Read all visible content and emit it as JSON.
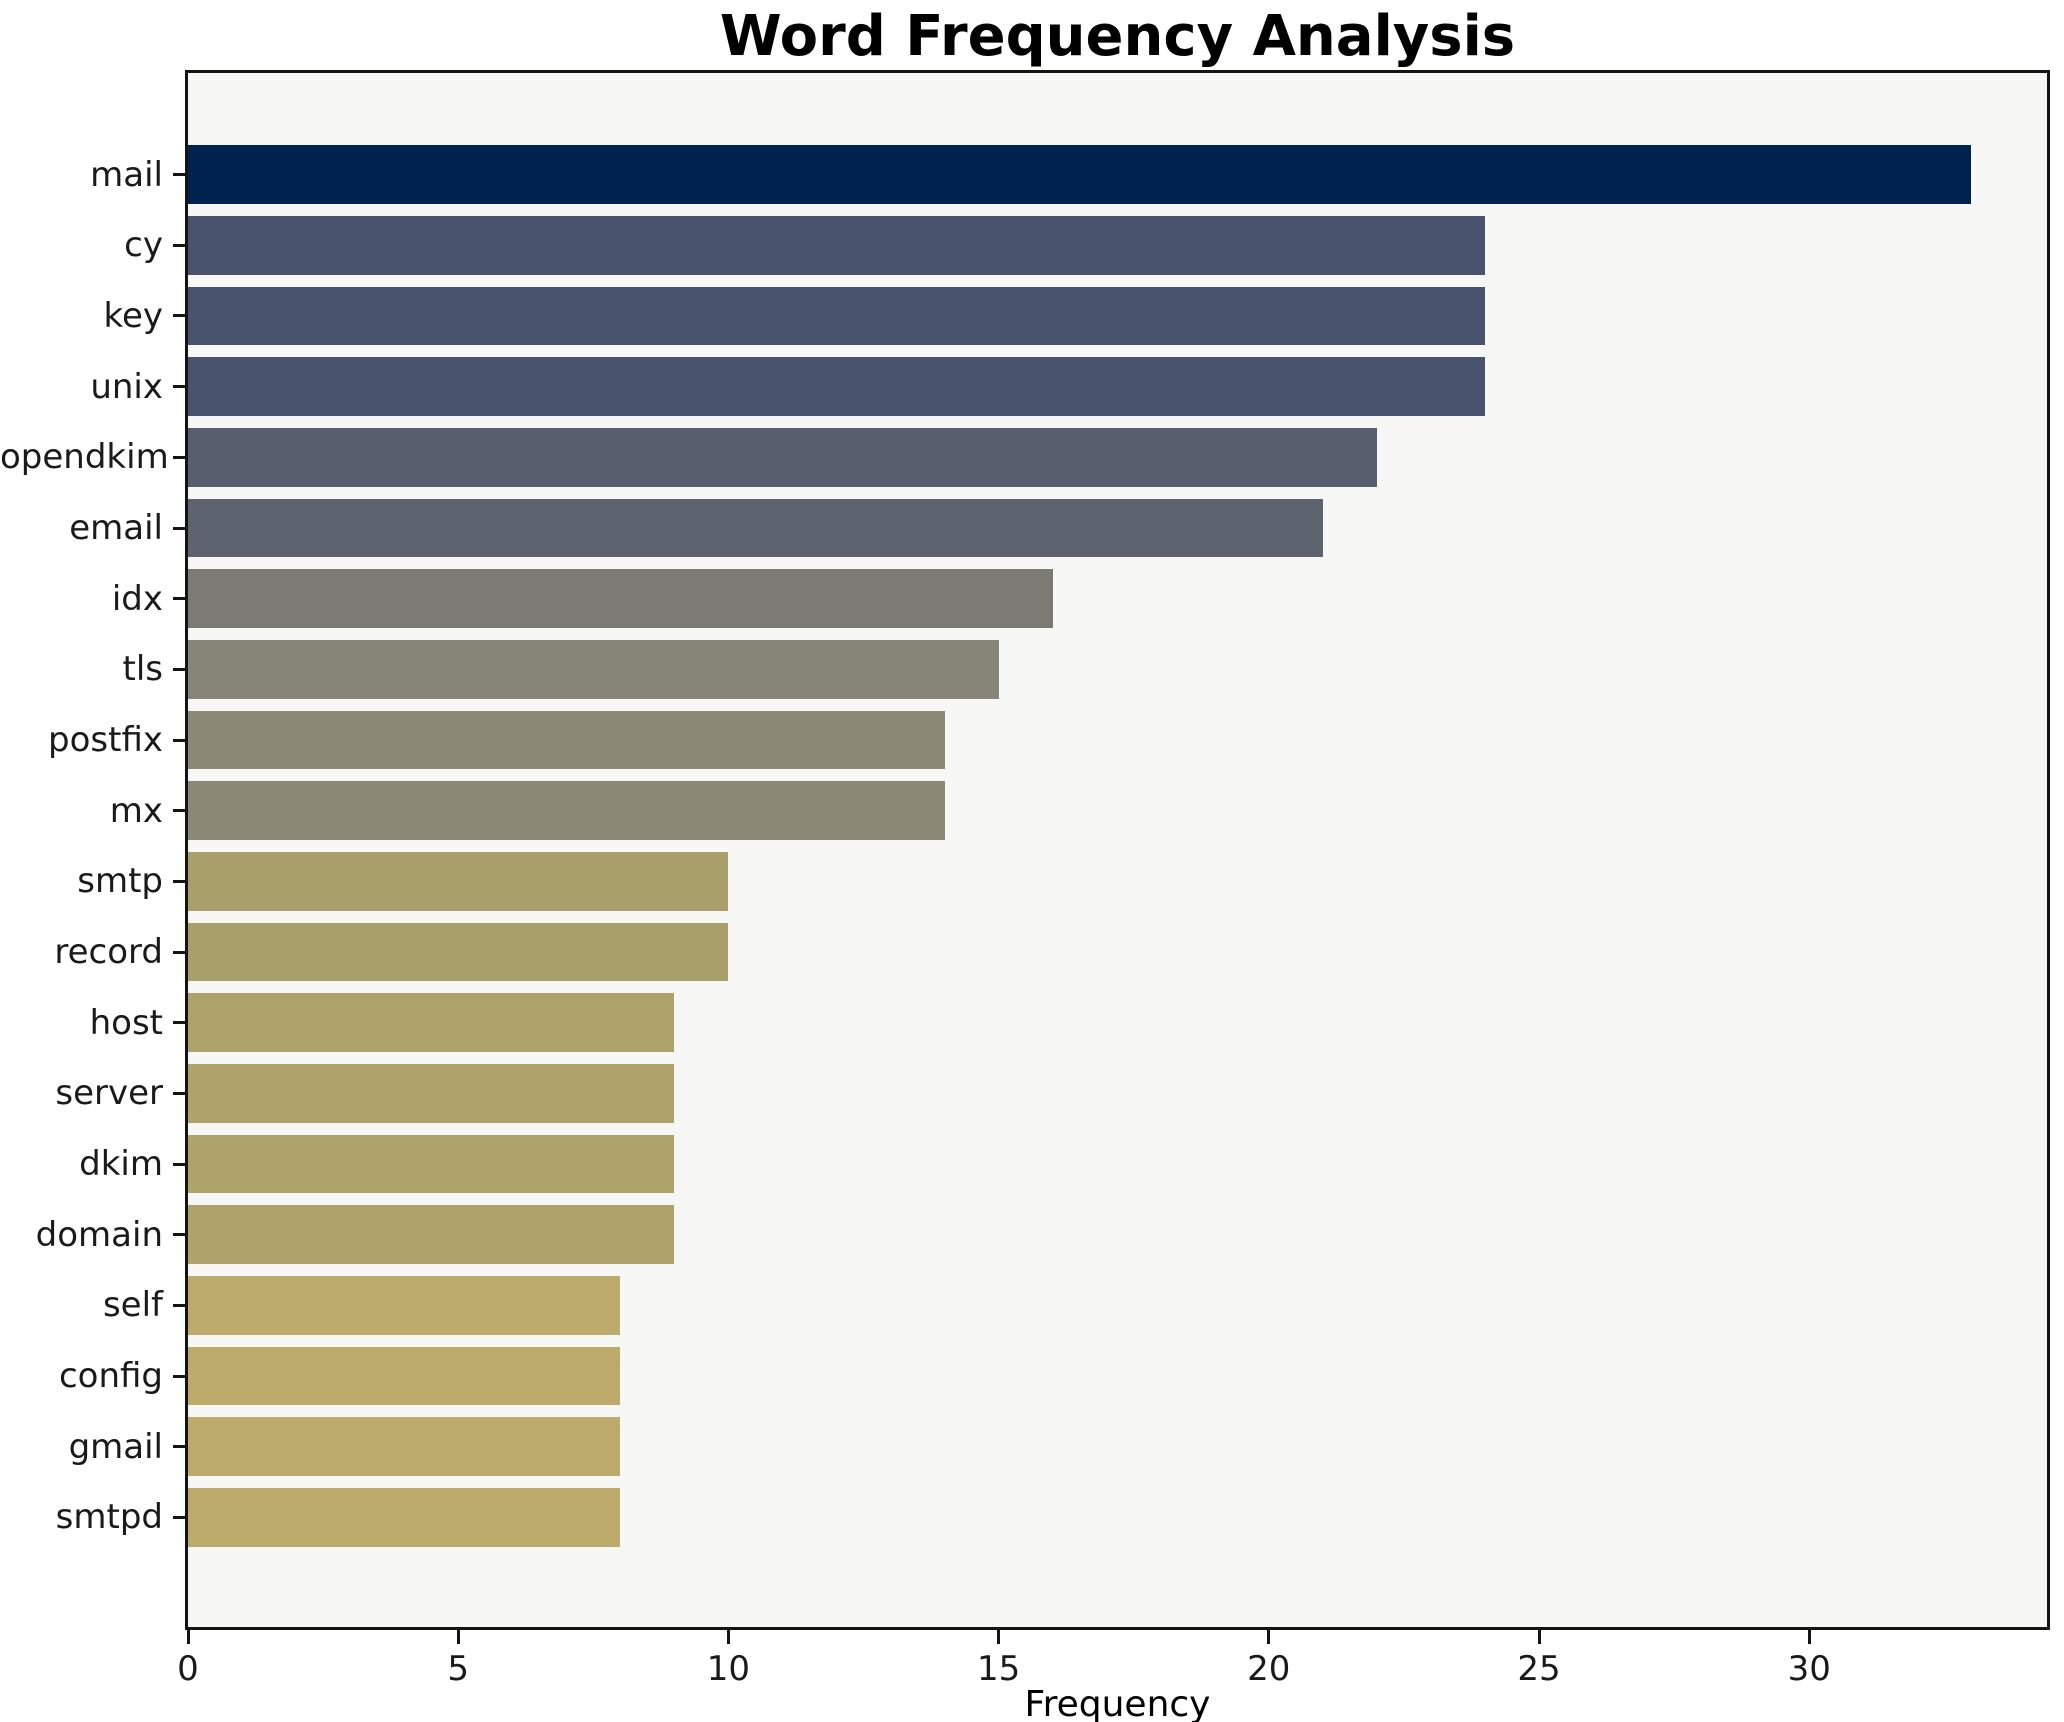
{
  "chart_data": {
    "type": "bar",
    "orientation": "horizontal",
    "title": "Word Frequency Analysis",
    "xlabel": "Frequency",
    "ylabel": "",
    "categories": [
      "mail",
      "cy",
      "key",
      "unix",
      "opendkim",
      "email",
      "idx",
      "tls",
      "postfix",
      "mx",
      "smtp",
      "record",
      "host",
      "server",
      "dkim",
      "domain",
      "self",
      "config",
      "gmail",
      "smtpd"
    ],
    "values": [
      33,
      24,
      24,
      24,
      22,
      21,
      16,
      15,
      14,
      14,
      10,
      10,
      9,
      9,
      9,
      9,
      8,
      8,
      8,
      8
    ],
    "bar_colors": [
      "#00224e",
      "#4a536e",
      "#4a536e",
      "#4a536e",
      "#575f6e",
      "#5d636f",
      "#7b7a74",
      "#868578",
      "#8b8876",
      "#8b8876",
      "#a89f6a",
      "#a89f6a",
      "#ada36a",
      "#ada36a",
      "#ada36a",
      "#ada36a",
      "#bcab6a",
      "#bcab6a",
      "#bcab6a",
      "#bcab6a"
    ],
    "x_ticks": [
      0,
      5,
      10,
      15,
      20,
      25,
      30
    ],
    "xlim": [
      0,
      34.4
    ],
    "grid": false,
    "legend": false,
    "plot_background": "#f7f7f5",
    "figure_background": "#ffffff",
    "spine_color": "#141414",
    "bar_color_scheme": "cividis"
  }
}
